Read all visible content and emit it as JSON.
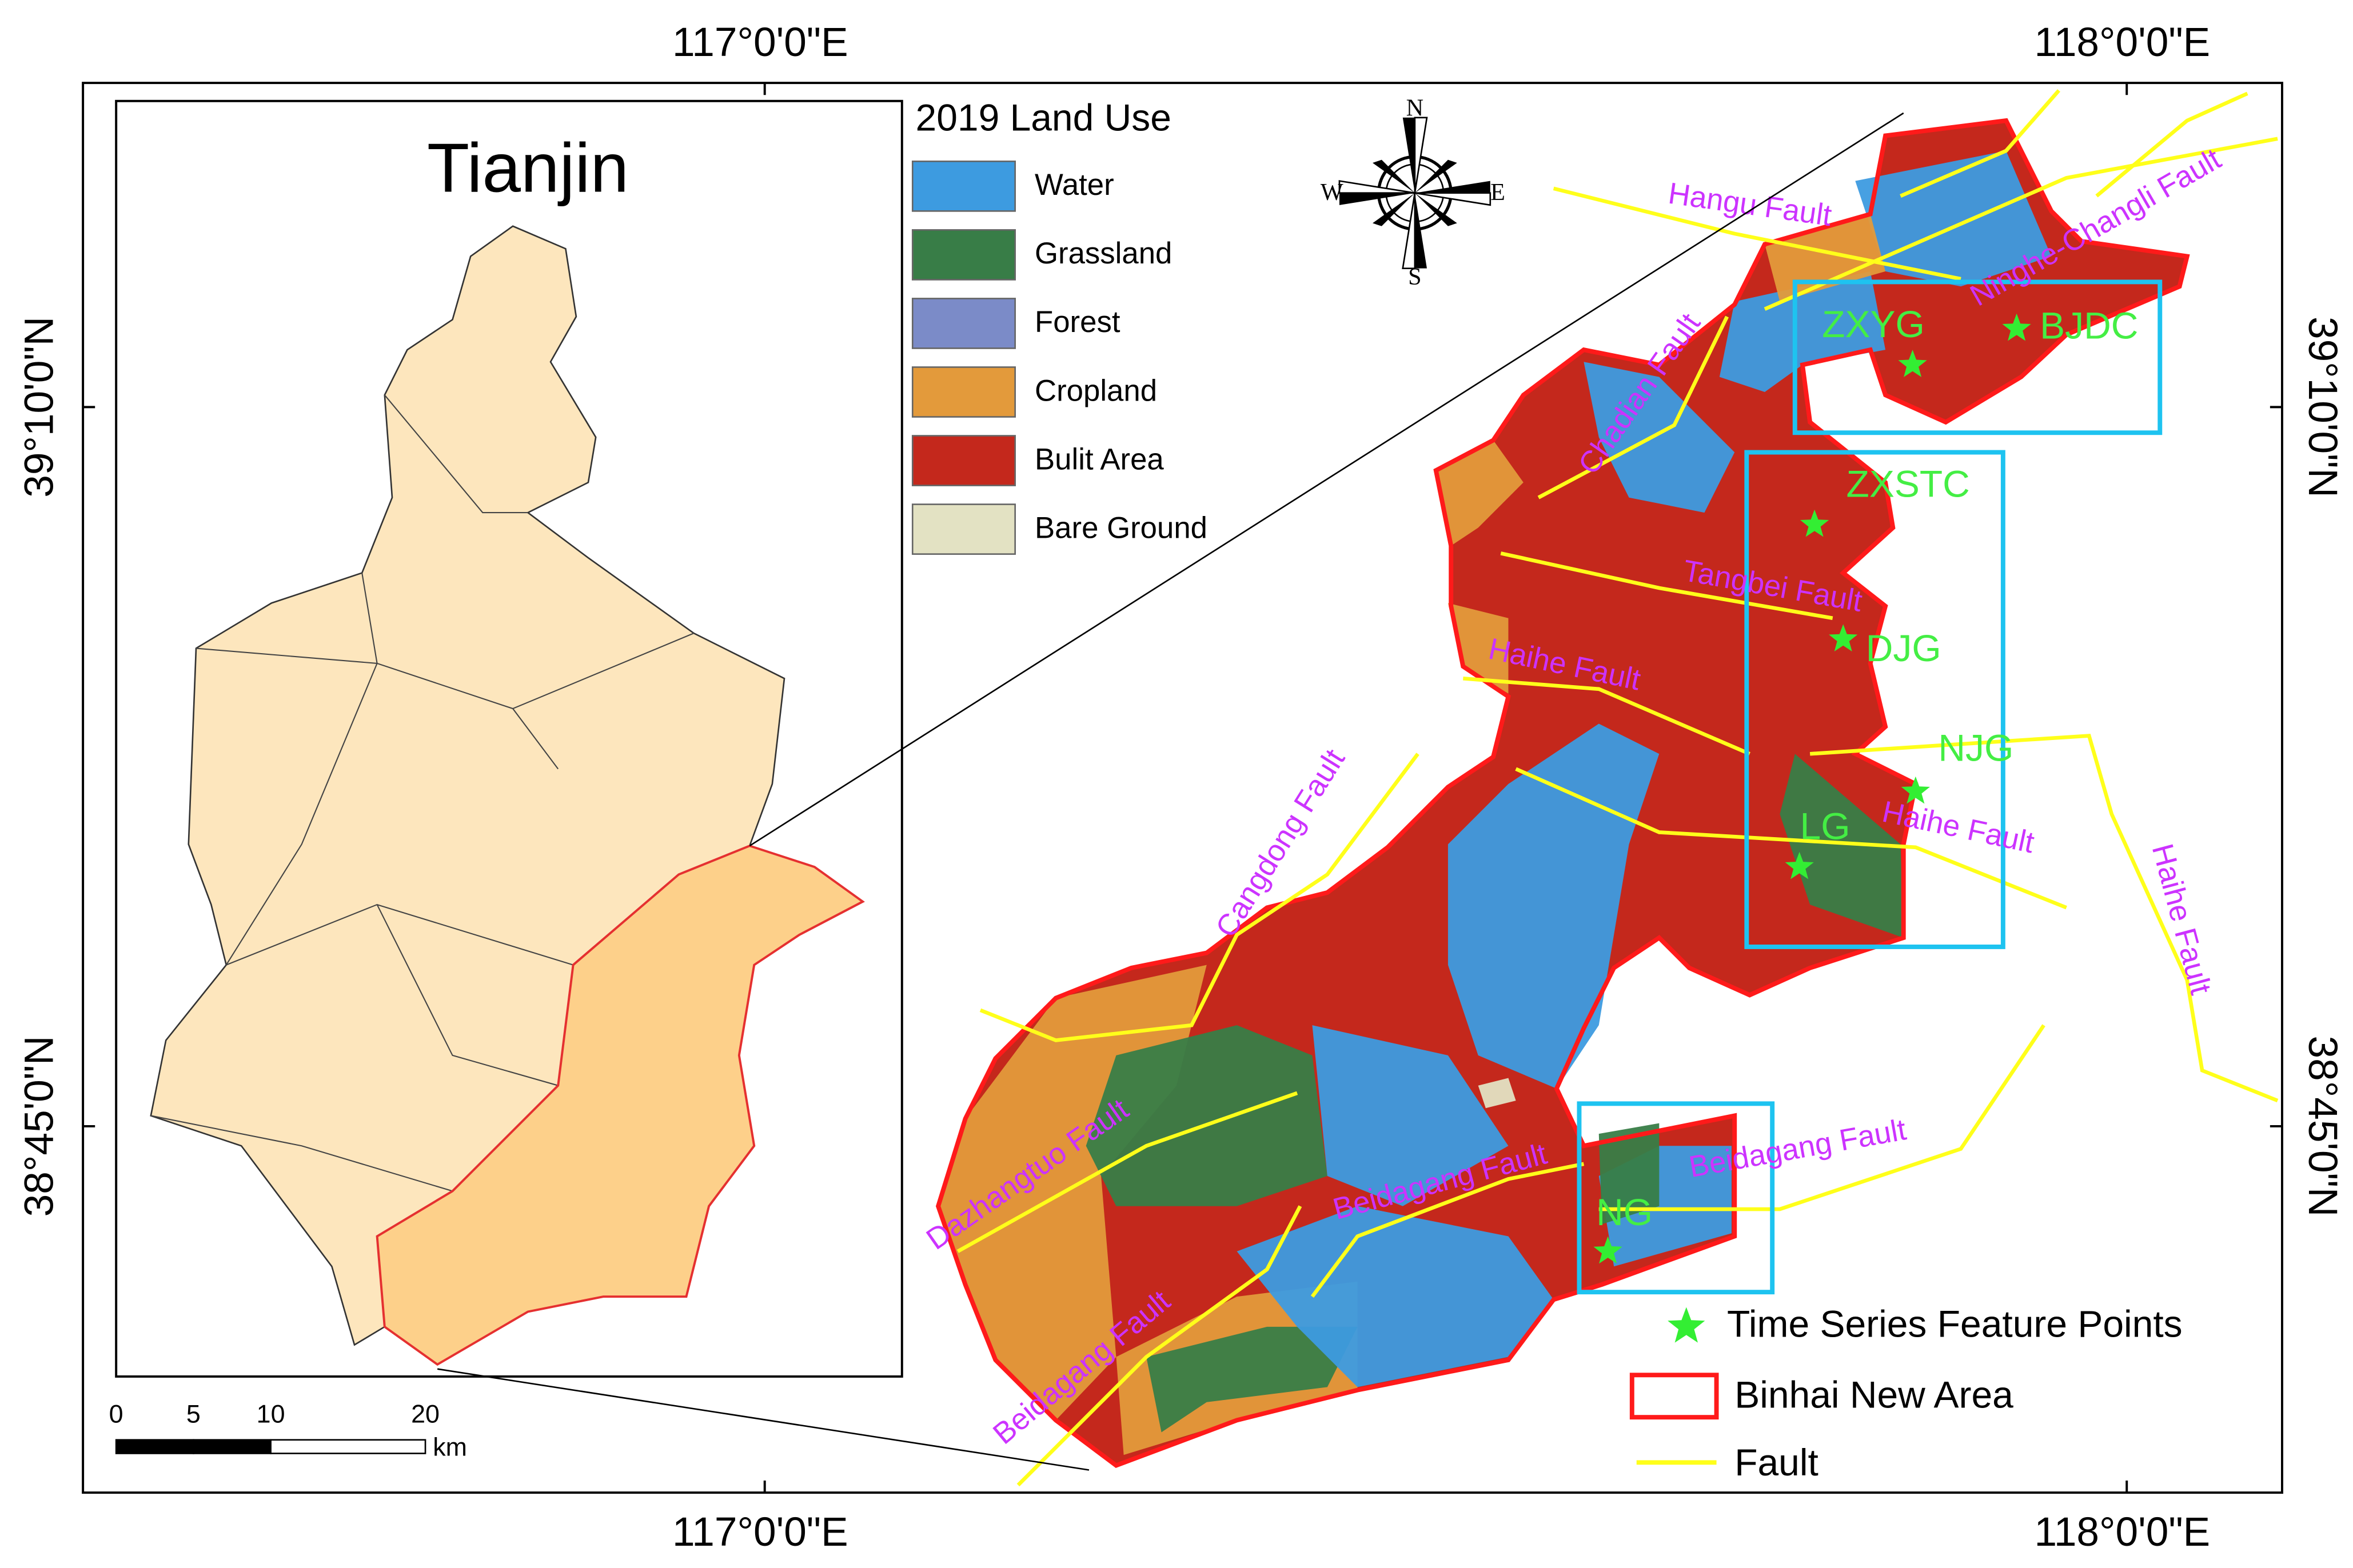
{
  "map": {
    "grid_labels": {
      "top": [
        "117°0'0\"E",
        "118°0'0\"E"
      ],
      "bottom": [
        "117°0'0\"E",
        "118°0'0\"E"
      ],
      "left": [
        "39°10'0\"N",
        "38°45'0\"N"
      ],
      "right": [
        "39°10'0\"N",
        "38°45'0\"N"
      ]
    },
    "inset": {
      "title": "Tianjin"
    },
    "land_use_legend": {
      "title": "2019 Land Use",
      "items": [
        {
          "label": "Water",
          "color": "#3d9be0"
        },
        {
          "label": "Grassland",
          "color": "#387d47"
        },
        {
          "label": "Forest",
          "color": "#7b8bc8"
        },
        {
          "label": "Cropland",
          "color": "#e39a3b"
        },
        {
          "label": "Bulit Area",
          "color": "#c4281c"
        },
        {
          "label": "Bare Ground",
          "color": "#e3e2c3"
        }
      ]
    },
    "compass": {
      "n": "N",
      "s": "S",
      "e": "E",
      "w": "W"
    },
    "fault_labels": [
      "Hangu Fault",
      "Ninghe-Changli Fault",
      "Chadian Fault",
      "Tangbei Fault",
      "Haihe Fault",
      "Haihe Fault",
      "Haihe Fault",
      "Cangdong Fault",
      "Dazhangtuo Fault",
      "Beidagang Fault",
      "Beidagang Fault",
      "Beidagang Fault"
    ],
    "feature_points": [
      "ZXYG",
      "BJDC",
      "ZXSTC",
      "DJG",
      "NJG",
      "LG",
      "NG"
    ],
    "legend": {
      "points": "Time Series Feature Points",
      "area": "Binhai New Area",
      "fault": "Fault"
    },
    "scale_bar": {
      "ticks": [
        0,
        5,
        10,
        20
      ],
      "unit": "km"
    }
  }
}
